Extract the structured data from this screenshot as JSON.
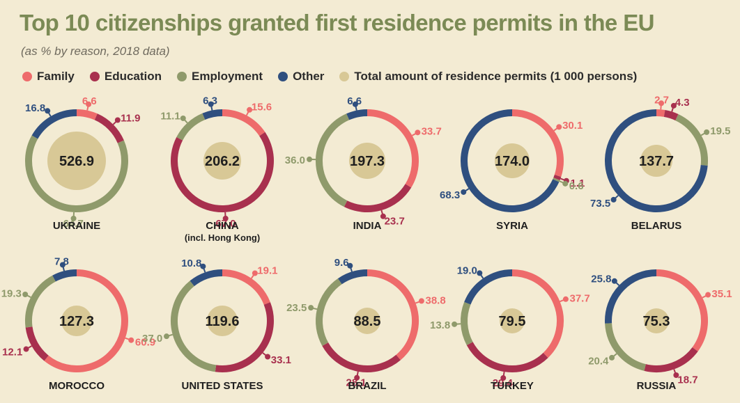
{
  "title": "Top 10 citizenships granted first residence permits in the EU",
  "subtitle": "(as % by reason, 2018 data)",
  "colors": {
    "family": "#ee6b6b",
    "education": "#a8304e",
    "employment": "#8f9a6b",
    "other": "#2f4f7f",
    "total": "#d8c896",
    "background": "#f3ebd3"
  },
  "legend": [
    {
      "key": "family",
      "label": "Family"
    },
    {
      "key": "education",
      "label": "Education"
    },
    {
      "key": "employment",
      "label": "Employment"
    },
    {
      "key": "other",
      "label": "Other"
    },
    {
      "key": "total",
      "label": "Total amount of residence permits (1 000 persons)"
    }
  ],
  "chart_data": {
    "type": "donut",
    "series_keys": [
      "family",
      "education",
      "employment",
      "other"
    ],
    "charts": [
      {
        "country": "UKRAINE",
        "country_sub": "",
        "total": "526.9",
        "values": {
          "family": 6.6,
          "education": 11.9,
          "employment": 64.7,
          "other": 16.8
        }
      },
      {
        "country": "CHINA",
        "country_sub": "(incl. Hong Kong)",
        "total": "206.2",
        "values": {
          "family": 15.6,
          "education": 67.0,
          "employment": 11.1,
          "other": 6.3
        }
      },
      {
        "country": "INDIA",
        "country_sub": "",
        "total": "197.3",
        "values": {
          "family": 33.7,
          "education": 23.7,
          "employment": 36.0,
          "other": 6.6
        }
      },
      {
        "country": "SYRIA",
        "country_sub": "",
        "total": "174.0",
        "values": {
          "family": 30.1,
          "education": 1.1,
          "employment": 0.6,
          "other": 68.3
        }
      },
      {
        "country": "BELARUS",
        "country_sub": "",
        "total": "137.7",
        "values": {
          "family": 2.7,
          "education": 4.3,
          "employment": 19.5,
          "other": 73.5
        }
      },
      {
        "country": "MOROCCO",
        "country_sub": "",
        "total": "127.3",
        "values": {
          "family": 60.9,
          "education": 12.1,
          "employment": 19.3,
          "other": 7.8
        }
      },
      {
        "country": "UNITED STATES",
        "country_sub": "",
        "total": "119.6",
        "values": {
          "family": 19.1,
          "education": 33.1,
          "employment": 37.0,
          "other": 10.8
        }
      },
      {
        "country": "BRAZIL",
        "country_sub": "",
        "total": "88.5",
        "values": {
          "family": 38.8,
          "education": 28.1,
          "employment": 23.5,
          "other": 9.6
        }
      },
      {
        "country": "TURKEY",
        "country_sub": "",
        "total": "79.5",
        "values": {
          "family": 37.7,
          "education": 29.4,
          "employment": 13.8,
          "other": 19.0
        }
      },
      {
        "country": "RUSSIA",
        "country_sub": "",
        "total": "75.3",
        "values": {
          "family": 35.1,
          "education": 18.7,
          "employment": 20.4,
          "other": 25.8
        }
      }
    ]
  }
}
